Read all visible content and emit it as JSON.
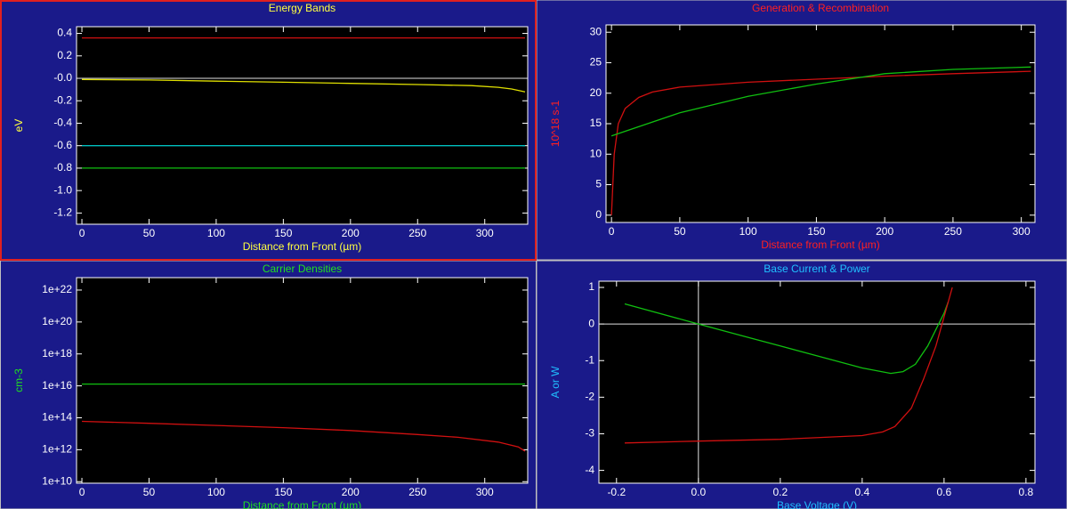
{
  "chart_data": {
    "charts": [
      {
        "type": "line",
        "title": "Energy Bands",
        "title_color": "#ffff40",
        "xlabel": "Distance from Front (µm)",
        "ylabel": "eV",
        "label_color": "#ffff40",
        "xlim": [
          -4,
          332
        ],
        "ylim": [
          -1.3,
          0.46
        ],
        "xticks": [
          0,
          50,
          100,
          150,
          200,
          250,
          300
        ],
        "yticks": [
          {
            "value": 0.4,
            "label": "0.4"
          },
          {
            "value": 0.2,
            "label": "0.2"
          },
          {
            "value": 0,
            "label": "-0.0"
          },
          {
            "value": -0.2,
            "label": "-0.2"
          },
          {
            "value": -0.4,
            "label": "-0.4"
          },
          {
            "value": -0.6,
            "label": "-0.6"
          },
          {
            "value": -0.8,
            "label": "-0.8"
          },
          {
            "value": -1.0,
            "label": "-1.0"
          },
          {
            "value": -1.2,
            "label": "-1.2"
          }
        ],
        "zero_lines": [
          "y"
        ],
        "series": [
          {
            "color": "#d01010",
            "x": [
              0,
              330
            ],
            "values": [
              0.36,
              0.36
            ]
          },
          {
            "color": "#e0e000",
            "x": [
              0,
              50,
              100,
              150,
              200,
              250,
              290,
              310,
              320,
              330
            ],
            "values": [
              -0.01,
              -0.015,
              -0.025,
              -0.035,
              -0.045,
              -0.055,
              -0.065,
              -0.08,
              -0.095,
              -0.12
            ]
          },
          {
            "color": "#00c0c0",
            "x": [
              0,
              330
            ],
            "values": [
              -0.6,
              -0.6
            ]
          },
          {
            "color": "#10c010",
            "x": [
              0,
              330
            ],
            "values": [
              -0.8,
              -0.8
            ]
          }
        ]
      },
      {
        "type": "line",
        "title": "Generation & Recombination",
        "title_color": "#ff2020",
        "xlabel": "Distance from Front (µm)",
        "ylabel": "10^18  s-1",
        "label_color": "#ff2020",
        "xlim": [
          -4,
          310
        ],
        "ylim": [
          -1.2,
          31.2
        ],
        "xticks": [
          0,
          50,
          100,
          150,
          200,
          250,
          300
        ],
        "yticks": [
          0,
          5,
          10,
          15,
          20,
          25,
          30
        ],
        "zero_lines": [],
        "series": [
          {
            "color": "#d01010",
            "x": [
              0,
              2,
              5,
              10,
              20,
              30,
              50,
              100,
              150,
              200,
              250,
              307
            ],
            "values": [
              0,
              10,
              15,
              17.5,
              19.3,
              20.2,
              21,
              21.8,
              22.3,
              22.8,
              23.2,
              23.6
            ]
          },
          {
            "color": "#10c010",
            "x": [
              0,
              50,
              100,
              150,
              200,
              250,
              307
            ],
            "values": [
              13,
              16.8,
              19.5,
              21.5,
              23.2,
              23.9,
              24.3
            ]
          }
        ]
      },
      {
        "type": "line",
        "title": "Carrier Densities",
        "title_color": "#20e020",
        "xlabel": "Distance from Front (µm)",
        "ylabel": "cm-3",
        "label_color": "#20e020",
        "log_y": true,
        "xlim": [
          -4,
          332
        ],
        "ylim": [
          8000000000,
          6e+22
        ],
        "xticks": [
          0,
          50,
          100,
          150,
          200,
          250,
          300
        ],
        "yticks": [
          {
            "value": 1e+22,
            "label": "1e+22"
          },
          {
            "value": 1e+20,
            "label": "1e+20"
          },
          {
            "value": 1e+18,
            "label": "1e+18"
          },
          {
            "value": 1e+16,
            "label": "1e+16"
          },
          {
            "value": 100000000000000.0,
            "label": "1e+14"
          },
          {
            "value": 1000000000000.0,
            "label": "1e+12"
          },
          {
            "value": 10000000000,
            "label": "1e+10"
          }
        ],
        "zero_lines": [],
        "series": [
          {
            "color": "#10c010",
            "x": [
              0,
              330
            ],
            "values": [
              1.3e+16,
              1.3e+16
            ]
          },
          {
            "color": "#d01010",
            "x": [
              0,
              50,
              100,
              150,
              200,
              250,
              280,
              310,
              325,
              330
            ],
            "values": [
              60000000000000.0,
              45000000000000.0,
              33000000000000.0,
              24000000000000.0,
              16000000000000.0,
              9000000000000.0,
              6000000000000.0,
              3000000000000.0,
              1500000000000.0,
              800000000000.0
            ]
          }
        ]
      },
      {
        "type": "line",
        "title": "Base Current & Power",
        "title_color": "#20c0ff",
        "xlabel": "Base Voltage (V)",
        "ylabel": "A or W",
        "label_color": "#20c0ff",
        "xlim": [
          -0.243,
          0.822
        ],
        "ylim": [
          -4.35,
          1.17
        ],
        "xticks": [
          -0.2,
          {
            "value": 0,
            "label": "0.0"
          },
          0.2,
          0.4,
          0.6,
          0.8
        ],
        "yticks": [
          1,
          0,
          -1,
          -2,
          -3,
          -4
        ],
        "zero_lines": [
          "x",
          "y"
        ],
        "series": [
          {
            "color": "#10c010",
            "x": [
              -0.18,
              0,
              0.1,
              0.2,
              0.3,
              0.4,
              0.47,
              0.5,
              0.53,
              0.56,
              0.6,
              0.61
            ],
            "values": [
              0.55,
              0,
              -0.3,
              -0.6,
              -0.9,
              -1.2,
              -1.35,
              -1.3,
              -1.1,
              -0.6,
              0.3,
              0.6
            ]
          },
          {
            "color": "#d01010",
            "x": [
              -0.18,
              0,
              0.2,
              0.4,
              0.45,
              0.48,
              0.52,
              0.55,
              0.58,
              0.6,
              0.62
            ],
            "values": [
              -3.25,
              -3.2,
              -3.15,
              -3.05,
              -2.95,
              -2.8,
              -2.3,
              -1.5,
              -0.6,
              0.2,
              1.0
            ]
          }
        ]
      }
    ]
  }
}
